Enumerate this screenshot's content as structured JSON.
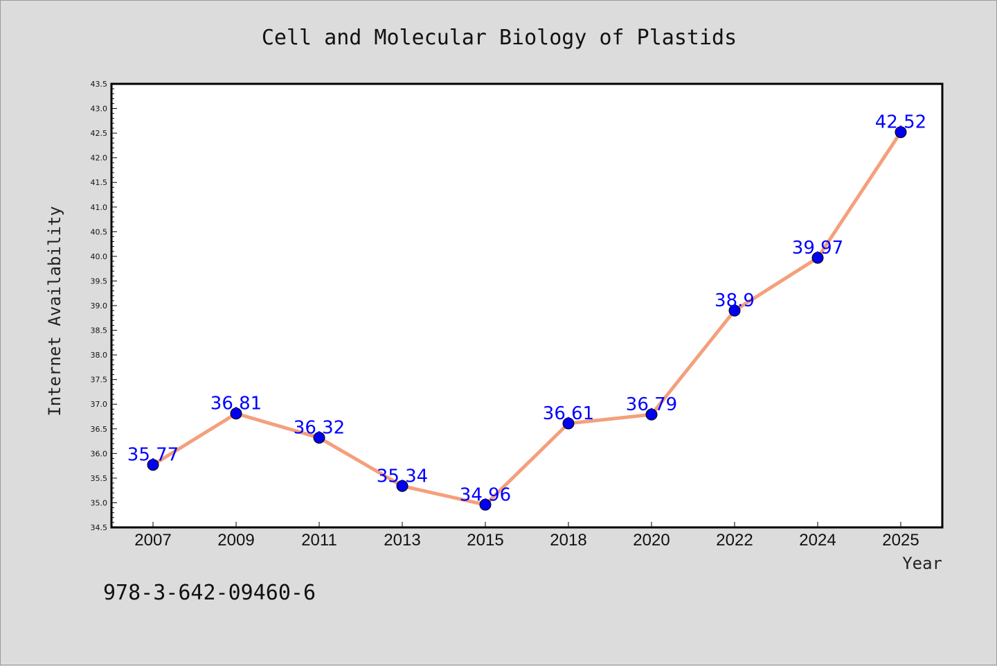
{
  "footer_text": "978-3-642-09460-6",
  "colors": {
    "background": "#dcdcdc",
    "plot_background": "#ffffff",
    "line": "#f4a07c",
    "marker": "#0000ee",
    "data_label": "#0000ff"
  },
  "chart_data": {
    "type": "line",
    "title": "Cell and Molecular Biology of Plastids",
    "xlabel": "Year",
    "ylabel": "Internet Availability",
    "categories": [
      "2007",
      "2009",
      "2011",
      "2013",
      "2015",
      "2018",
      "2020",
      "2022",
      "2024",
      "2025"
    ],
    "series": [
      {
        "values": [
          35.77,
          36.81,
          36.32,
          35.34,
          34.96,
          36.61,
          36.79,
          38.9,
          39.97,
          42.52
        ],
        "labels": [
          "35.77",
          "36.81",
          "36.32",
          "35.34",
          "34.96",
          "36.61",
          "36.79",
          "38.9",
          "39.97",
          "42.52"
        ]
      }
    ],
    "ylim": [
      34.5,
      43.5
    ],
    "yticks": [
      "34.5",
      "35.0",
      "35.5",
      "36.0",
      "36.5",
      "37.0",
      "37.5",
      "38.0",
      "38.5",
      "39.0",
      "39.5",
      "40.0",
      "40.5",
      "41.0",
      "41.5",
      "42.0",
      "42.5",
      "43.0",
      "43.5"
    ],
    "grid": false,
    "legend": "none"
  }
}
